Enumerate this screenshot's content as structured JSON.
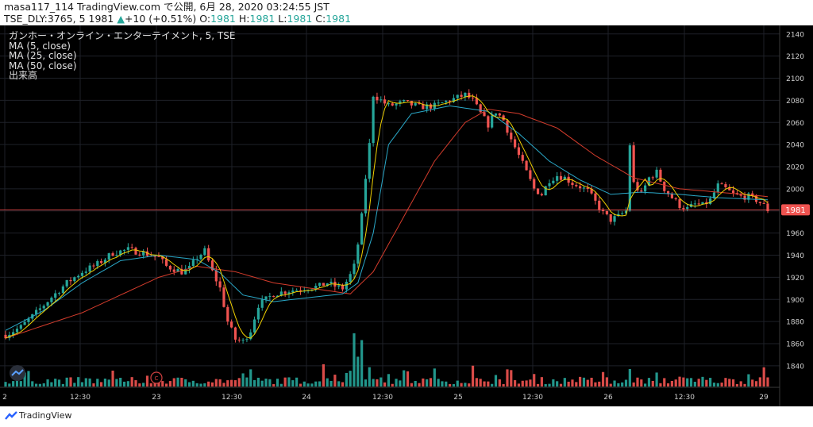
{
  "header": {
    "line1": "masa117_114 TradingView.com で公開, 6月 28, 2020 03:24:55 JST",
    "symbol": "TSE_DLY:3765, 5",
    "last": "1981",
    "change_arrow": "▲",
    "change": "+10 (+0.51%)",
    "o_label": "O:",
    "o": "1981",
    "h_label": "H:",
    "h": "1981",
    "l_label": "L:",
    "l": "1981",
    "c_label": "C:",
    "c": "1981"
  },
  "legend": {
    "title": "ガンホー・オンライン・エンターテイメント, 5, TSE",
    "ma5": "MA (5, close)",
    "ma25": "MA (25, close)",
    "ma50": "MA (50, close)",
    "volume": "出来高"
  },
  "footer": {
    "brand": "TradingView"
  },
  "colors": {
    "background": "#000000",
    "grid": "#1e2128",
    "up": "#26a69a",
    "down": "#ef5350",
    "ma5": "#f0d000",
    "ma25": "#2aa8c8",
    "ma50": "#d43c2c",
    "price_line": "#ff5050",
    "axis_text": "#cfcfcf"
  },
  "chart_data": {
    "type": "candlestick",
    "y_ticks": [
      1840,
      1860,
      1880,
      1900,
      1920,
      1940,
      1960,
      1980,
      2000,
      2020,
      2040,
      2060,
      2080,
      2100,
      2120,
      2140
    ],
    "ylim": [
      1822,
      2142
    ],
    "x_ticks": [
      "2",
      "12:30",
      "23",
      "12:30",
      "24",
      "12:30",
      "25",
      "12:30",
      "26",
      "12:30",
      "29"
    ],
    "last_price_label": "1981",
    "last_price": 1981,
    "price_path": [
      [
        0,
        1868
      ],
      [
        4,
        1875
      ],
      [
        8,
        1888
      ],
      [
        12,
        1902
      ],
      [
        16,
        1915
      ],
      [
        20,
        1925
      ],
      [
        24,
        1932
      ],
      [
        28,
        1942
      ],
      [
        32,
        1945
      ],
      [
        36,
        1942
      ],
      [
        40,
        1938
      ],
      [
        42,
        1930
      ],
      [
        46,
        1925
      ],
      [
        48,
        1928
      ],
      [
        50,
        1938
      ],
      [
        52,
        1944
      ],
      [
        54,
        1925
      ],
      [
        56,
        1910
      ],
      [
        58,
        1880
      ],
      [
        60,
        1864
      ],
      [
        62,
        1862
      ],
      [
        64,
        1872
      ],
      [
        66,
        1895
      ],
      [
        70,
        1905
      ],
      [
        74,
        1908
      ],
      [
        78,
        1910
      ],
      [
        82,
        1912
      ],
      [
        84,
        1915
      ],
      [
        86,
        1912
      ],
      [
        88,
        1910
      ],
      [
        90,
        1922
      ],
      [
        91,
        1930
      ],
      [
        92,
        1950
      ],
      [
        93,
        1975
      ],
      [
        94,
        2010
      ],
      [
        95,
        2040
      ],
      [
        96,
        2085
      ],
      [
        98,
        2080
      ],
      [
        100,
        2075
      ],
      [
        104,
        2078
      ],
      [
        108,
        2074
      ],
      [
        112,
        2075
      ],
      [
        116,
        2080
      ],
      [
        120,
        2085
      ],
      [
        122,
        2080
      ],
      [
        124,
        2068
      ],
      [
        126,
        2058
      ],
      [
        128,
        2070
      ],
      [
        130,
        2062
      ],
      [
        132,
        2045
      ],
      [
        134,
        2030
      ],
      [
        136,
        2015
      ],
      [
        138,
        2000
      ],
      [
        140,
        1995
      ],
      [
        142,
        2008
      ],
      [
        144,
        2012
      ],
      [
        146,
        2010
      ],
      [
        148,
        2005
      ],
      [
        150,
        2002
      ],
      [
        152,
        1998
      ],
      [
        154,
        1988
      ],
      [
        156,
        1978
      ],
      [
        158,
        1972
      ],
      [
        160,
        1975
      ],
      [
        162,
        1980
      ],
      [
        163,
        2040
      ],
      [
        164,
        2005
      ],
      [
        166,
        1995
      ],
      [
        168,
        2010
      ],
      [
        170,
        2015
      ],
      [
        172,
        2000
      ],
      [
        174,
        1992
      ],
      [
        176,
        1985
      ],
      [
        178,
        1982
      ],
      [
        180,
        1986
      ],
      [
        182,
        1985
      ],
      [
        184,
        1990
      ],
      [
        186,
        2003
      ],
      [
        188,
        2000
      ],
      [
        190,
        1995
      ],
      [
        192,
        1993
      ],
      [
        194,
        1993
      ],
      [
        196,
        1990
      ],
      [
        198,
        1985
      ],
      [
        199,
        1981
      ]
    ],
    "ma_offsets": [
      [
        0,
        1872
      ],
      [
        10,
        1890
      ],
      [
        20,
        1915
      ],
      [
        30,
        1935
      ],
      [
        40,
        1940
      ],
      [
        50,
        1936
      ],
      [
        56,
        1924
      ],
      [
        62,
        1904
      ],
      [
        70,
        1898
      ],
      [
        80,
        1902
      ],
      [
        88,
        1905
      ],
      [
        92,
        1915
      ],
      [
        96,
        1960
      ],
      [
        100,
        2040
      ],
      [
        106,
        2068
      ],
      [
        116,
        2075
      ],
      [
        126,
        2070
      ],
      [
        134,
        2050
      ],
      [
        142,
        2025
      ],
      [
        150,
        2008
      ],
      [
        158,
        1995
      ],
      [
        166,
        1997
      ],
      [
        176,
        1995
      ],
      [
        186,
        1992
      ],
      [
        199,
        1990
      ]
    ],
    "ma50_path": [
      [
        0,
        1865
      ],
      [
        20,
        1888
      ],
      [
        40,
        1920
      ],
      [
        50,
        1930
      ],
      [
        60,
        1925
      ],
      [
        70,
        1915
      ],
      [
        84,
        1908
      ],
      [
        90,
        1905
      ],
      [
        96,
        1925
      ],
      [
        104,
        1975
      ],
      [
        112,
        2025
      ],
      [
        120,
        2060
      ],
      [
        126,
        2072
      ],
      [
        134,
        2068
      ],
      [
        144,
        2055
      ],
      [
        154,
        2030
      ],
      [
        164,
        2010
      ],
      [
        176,
        2000
      ],
      [
        186,
        1997
      ],
      [
        199,
        1993
      ]
    ],
    "volume": {
      "spikes": [
        [
          83,
          22
        ],
        [
          86,
          12
        ],
        [
          90,
          16
        ],
        [
          91,
          55
        ],
        [
          92,
          30
        ],
        [
          93,
          48
        ],
        [
          95,
          20
        ],
        [
          100,
          12
        ],
        [
          104,
          14
        ],
        [
          112,
          10
        ],
        [
          122,
          20
        ],
        [
          128,
          12
        ],
        [
          138,
          12
        ],
        [
          150,
          8
        ],
        [
          163,
          18
        ],
        [
          170,
          12
        ],
        [
          176,
          10
        ],
        [
          182,
          8
        ],
        [
          198,
          18
        ]
      ],
      "markers": [
        "24",
        "25",
        "26"
      ]
    }
  }
}
